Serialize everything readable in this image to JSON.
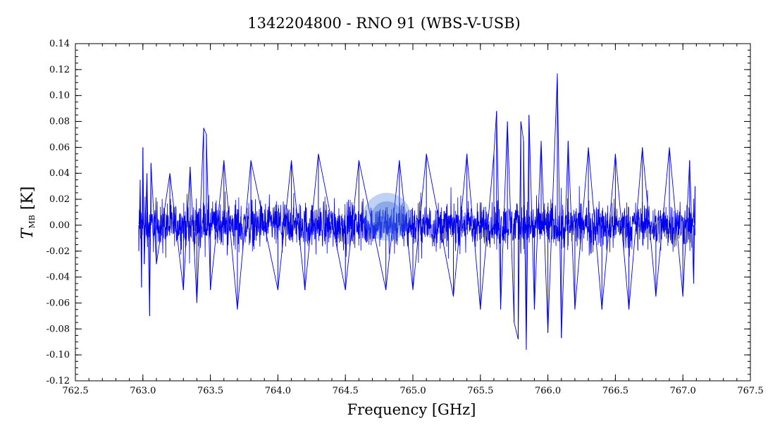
{
  "chart_data": {
    "type": "line",
    "title": "1342204800 - RNO 91 (WBS-V-USB)",
    "xlabel": "Frequency [GHz]",
    "ylabel": "T",
    "ylabel_subscript": "MB",
    "ylabel_unit": " [K]",
    "xlim": [
      762.5,
      767.5
    ],
    "ylim": [
      -0.12,
      0.14
    ],
    "x_ticks": [
      "762.5",
      "763.0",
      "763.5",
      "764.0",
      "764.5",
      "765.0",
      "765.5",
      "766.0",
      "766.5",
      "767.0",
      "767.5"
    ],
    "y_ticks": [
      "0.14",
      "0.12",
      "0.10",
      "0.08",
      "0.06",
      "0.04",
      "0.02",
      "0.00",
      "-0.02",
      "-0.04",
      "-0.06",
      "-0.08",
      "-0.10",
      "-0.12"
    ],
    "x_tick_values": [
      762.5,
      763.0,
      763.5,
      764.0,
      764.5,
      765.0,
      765.5,
      766.0,
      766.5,
      767.0,
      767.5
    ],
    "y_tick_values": [
      0.14,
      0.12,
      0.1,
      0.08,
      0.06,
      0.04,
      0.02,
      0.0,
      -0.02,
      -0.04,
      -0.06,
      -0.08,
      -0.1,
      -0.12
    ],
    "grid": false,
    "series": [
      {
        "color": "#0000ee",
        "description_range": [
          762.97,
          767.09
        ],
        "points": [
          [
            762.97,
            -0.02
          ],
          [
            762.98,
            0.035
          ],
          [
            762.99,
            -0.048
          ],
          [
            763.0,
            0.06
          ],
          [
            763.01,
            -0.03
          ],
          [
            763.03,
            0.04
          ],
          [
            763.05,
            -0.07
          ],
          [
            763.06,
            0.048
          ],
          [
            763.1,
            -0.03
          ],
          [
            763.2,
            0.04
          ],
          [
            763.3,
            -0.05
          ],
          [
            763.35,
            0.045
          ],
          [
            763.4,
            -0.06
          ],
          [
            763.45,
            0.075
          ],
          [
            763.47,
            0.07
          ],
          [
            763.5,
            -0.05
          ],
          [
            763.6,
            0.05
          ],
          [
            763.7,
            -0.065
          ],
          [
            763.8,
            0.05
          ],
          [
            764.0,
            -0.05
          ],
          [
            764.1,
            0.05
          ],
          [
            764.2,
            -0.05
          ],
          [
            764.3,
            0.055
          ],
          [
            764.5,
            -0.05
          ],
          [
            764.6,
            0.05
          ],
          [
            764.8,
            -0.05
          ],
          [
            764.9,
            0.05
          ],
          [
            765.0,
            -0.05
          ],
          [
            765.1,
            0.055
          ],
          [
            765.3,
            -0.055
          ],
          [
            765.4,
            0.055
          ],
          [
            765.5,
            -0.065
          ],
          [
            765.6,
            0.055
          ],
          [
            765.62,
            0.088
          ],
          [
            765.65,
            -0.065
          ],
          [
            765.7,
            0.08
          ],
          [
            765.75,
            -0.075
          ],
          [
            765.78,
            -0.088
          ],
          [
            765.8,
            0.08
          ],
          [
            765.82,
            0.065
          ],
          [
            765.84,
            -0.096
          ],
          [
            765.86,
            0.085
          ],
          [
            765.9,
            -0.065
          ],
          [
            765.95,
            0.065
          ],
          [
            766.0,
            -0.083
          ],
          [
            766.07,
            0.117
          ],
          [
            766.1,
            -0.087
          ],
          [
            766.15,
            0.065
          ],
          [
            766.2,
            -0.065
          ],
          [
            766.3,
            0.06
          ],
          [
            766.4,
            -0.065
          ],
          [
            766.5,
            0.055
          ],
          [
            766.6,
            -0.065
          ],
          [
            766.7,
            0.06
          ],
          [
            766.8,
            -0.055
          ],
          [
            766.9,
            0.06
          ],
          [
            767.0,
            -0.055
          ],
          [
            767.05,
            0.05
          ],
          [
            767.08,
            -0.045
          ],
          [
            767.09,
            0.03
          ]
        ]
      }
    ]
  }
}
